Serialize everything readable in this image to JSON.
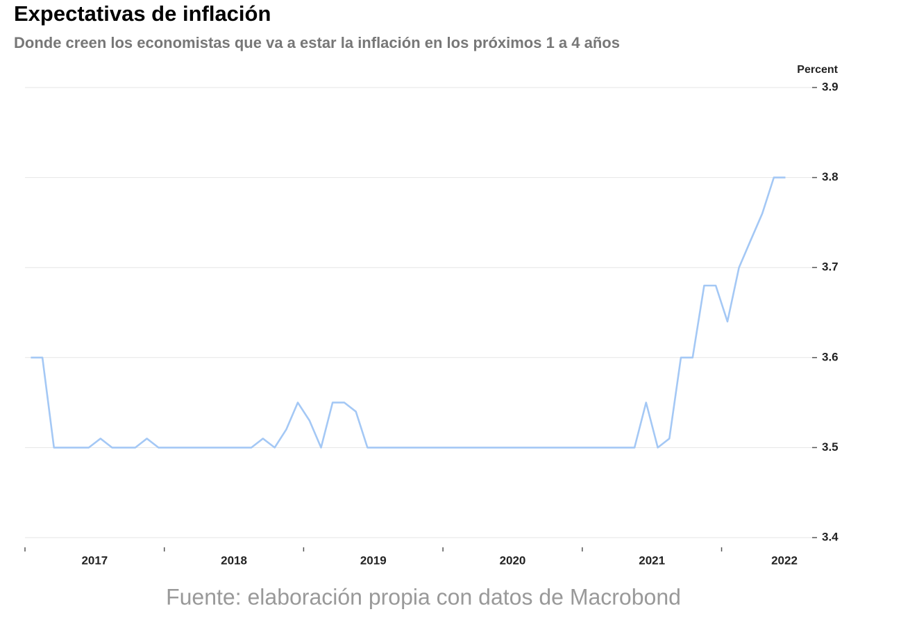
{
  "chart_data": {
    "type": "line",
    "title": "Expectativas de inflación",
    "subtitle": "Donde creen los economistas que va a estar la inflación en los próximos 1 a 4 años",
    "y_label": "Percent",
    "source": "Fuente: elaboración propia con datos de Macrobond",
    "color": "#a4c8f5",
    "grid": true,
    "x": [
      2017.042,
      2017.125,
      2017.208,
      2017.292,
      2017.375,
      2017.458,
      2017.542,
      2017.625,
      2017.708,
      2017.792,
      2017.875,
      2017.958,
      2018.042,
      2018.125,
      2018.208,
      2018.292,
      2018.375,
      2018.458,
      2018.542,
      2018.625,
      2018.708,
      2018.792,
      2018.875,
      2018.958,
      2019.042,
      2019.125,
      2019.208,
      2019.292,
      2019.375,
      2019.458,
      2019.542,
      2019.625,
      2019.708,
      2019.792,
      2019.875,
      2019.958,
      2020.042,
      2020.125,
      2020.208,
      2020.292,
      2020.375,
      2020.458,
      2020.542,
      2020.625,
      2020.708,
      2020.792,
      2020.875,
      2020.958,
      2021.042,
      2021.125,
      2021.208,
      2021.292,
      2021.375,
      2021.458,
      2021.542,
      2021.625,
      2021.708,
      2021.792,
      2021.875,
      2021.958,
      2022.042,
      2022.125,
      2022.208,
      2022.292,
      2022.375,
      2022.458
    ],
    "values": [
      3.6,
      3.6,
      3.5,
      3.5,
      3.5,
      3.5,
      3.51,
      3.5,
      3.5,
      3.5,
      3.51,
      3.5,
      3.5,
      3.5,
      3.5,
      3.5,
      3.5,
      3.5,
      3.5,
      3.5,
      3.51,
      3.5,
      3.52,
      3.55,
      3.53,
      3.5,
      3.55,
      3.55,
      3.54,
      3.5,
      3.5,
      3.5,
      3.5,
      3.5,
      3.5,
      3.5,
      3.5,
      3.5,
      3.5,
      3.5,
      3.5,
      3.5,
      3.5,
      3.5,
      3.5,
      3.5,
      3.5,
      3.5,
      3.5,
      3.5,
      3.5,
      3.5,
      3.5,
      3.55,
      3.5,
      3.51,
      3.6,
      3.6,
      3.68,
      3.68,
      3.64,
      3.7,
      3.73,
      3.76,
      3.8,
      3.8
    ],
    "xlim": [
      2017,
      2022.65
    ],
    "xticks": [
      2017,
      2018,
      2019,
      2020,
      2021,
      2022
    ],
    "ylim": [
      3.4,
      3.9
    ],
    "yticks": [
      3.4,
      3.5,
      3.6,
      3.7,
      3.8,
      3.9
    ]
  }
}
